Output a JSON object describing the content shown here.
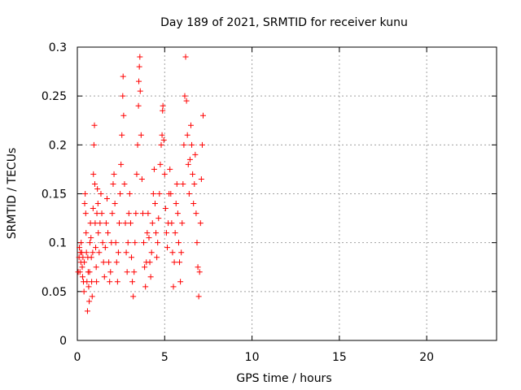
{
  "chart_data": {
    "type": "scatter",
    "title": "Day 189 of 2021, SRMTID for receiver kunu",
    "xlabel": "GPS time / hours",
    "ylabel": "SRMTID / TECUs",
    "xlim": [
      0,
      24
    ],
    "ylim": [
      0,
      0.3
    ],
    "x_ticks": [
      0,
      5,
      10,
      15,
      20
    ],
    "x_tick_labels": [
      "0",
      "5",
      "10",
      "15",
      "20"
    ],
    "y_ticks": [
      0,
      0.05,
      0.1,
      0.15,
      0.2,
      0.25,
      0.3
    ],
    "y_tick_labels": [
      "0",
      "0.05",
      "0.1",
      "0.15",
      "0.2",
      "0.25",
      "0.3"
    ],
    "grid": true,
    "marker": "plus",
    "colors": {
      "series": "#ff0000",
      "grid": "#a0a0a0",
      "axis": "#000000"
    },
    "series": [
      {
        "name": "SRMTID",
        "points": [
          [
            0.05,
            0.07
          ],
          [
            0.1,
            0.085
          ],
          [
            0.12,
            0.095
          ],
          [
            0.15,
            0.07
          ],
          [
            0.18,
            0.09
          ],
          [
            0.2,
            0.08
          ],
          [
            0.22,
            0.1
          ],
          [
            0.25,
            0.09
          ],
          [
            0.28,
            0.075
          ],
          [
            0.3,
            0.065
          ],
          [
            0.32,
            0.085
          ],
          [
            0.35,
            0.06
          ],
          [
            0.38,
            0.05
          ],
          [
            0.4,
            0.08
          ],
          [
            0.42,
            0.14
          ],
          [
            0.45,
            0.15
          ],
          [
            0.48,
            0.13
          ],
          [
            0.5,
            0.11
          ],
          [
            0.52,
            0.09
          ],
          [
            0.55,
            0.06
          ],
          [
            0.58,
            0.03
          ],
          [
            0.6,
            0.085
          ],
          [
            0.62,
            0.07
          ],
          [
            0.65,
            0.055
          ],
          [
            0.68,
            0.04
          ],
          [
            0.7,
            0.07
          ],
          [
            0.72,
            0.1
          ],
          [
            0.75,
            0.12
          ],
          [
            0.78,
            0.105
          ],
          [
            0.8,
            0.085
          ],
          [
            0.82,
            0.06
          ],
          [
            0.85,
            0.045
          ],
          [
            0.88,
            0.09
          ],
          [
            0.9,
            0.135
          ],
          [
            0.92,
            0.17
          ],
          [
            0.95,
            0.2
          ],
          [
            0.98,
            0.22
          ],
          [
            1.0,
            0.16
          ],
          [
            1.02,
            0.12
          ],
          [
            1.05,
            0.095
          ],
          [
            1.08,
            0.075
          ],
          [
            1.1,
            0.06
          ],
          [
            1.12,
            0.13
          ],
          [
            1.15,
            0.155
          ],
          [
            1.18,
            0.14
          ],
          [
            1.2,
            0.11
          ],
          [
            1.25,
            0.09
          ],
          [
            1.3,
            0.12
          ],
          [
            1.35,
            0.15
          ],
          [
            1.4,
            0.13
          ],
          [
            1.45,
            0.1
          ],
          [
            1.5,
            0.08
          ],
          [
            1.55,
            0.065
          ],
          [
            1.6,
            0.095
          ],
          [
            1.65,
            0.12
          ],
          [
            1.7,
            0.145
          ],
          [
            1.75,
            0.11
          ],
          [
            1.8,
            0.08
          ],
          [
            1.85,
            0.06
          ],
          [
            1.9,
            0.07
          ],
          [
            1.95,
            0.1
          ],
          [
            2.0,
            0.13
          ],
          [
            2.05,
            0.16
          ],
          [
            2.1,
            0.17
          ],
          [
            2.15,
            0.14
          ],
          [
            2.2,
            0.1
          ],
          [
            2.25,
            0.08
          ],
          [
            2.3,
            0.06
          ],
          [
            2.35,
            0.09
          ],
          [
            2.4,
            0.12
          ],
          [
            2.45,
            0.15
          ],
          [
            2.5,
            0.18
          ],
          [
            2.55,
            0.21
          ],
          [
            2.6,
            0.25
          ],
          [
            2.62,
            0.27
          ],
          [
            2.65,
            0.23
          ],
          [
            2.7,
            0.16
          ],
          [
            2.75,
            0.12
          ],
          [
            2.8,
            0.09
          ],
          [
            2.85,
            0.07
          ],
          [
            2.9,
            0.1
          ],
          [
            2.95,
            0.13
          ],
          [
            3.0,
            0.15
          ],
          [
            3.05,
            0.12
          ],
          [
            3.1,
            0.085
          ],
          [
            3.15,
            0.06
          ],
          [
            3.2,
            0.045
          ],
          [
            3.25,
            0.07
          ],
          [
            3.3,
            0.1
          ],
          [
            3.35,
            0.13
          ],
          [
            3.4,
            0.17
          ],
          [
            3.45,
            0.2
          ],
          [
            3.5,
            0.24
          ],
          [
            3.52,
            0.265
          ],
          [
            3.55,
            0.28
          ],
          [
            3.58,
            0.29
          ],
          [
            3.6,
            0.255
          ],
          [
            3.65,
            0.21
          ],
          [
            3.7,
            0.165
          ],
          [
            3.75,
            0.13
          ],
          [
            3.8,
            0.1
          ],
          [
            3.85,
            0.075
          ],
          [
            3.9,
            0.055
          ],
          [
            3.95,
            0.08
          ],
          [
            4.0,
            0.11
          ],
          [
            4.05,
            0.13
          ],
          [
            4.1,
            0.105
          ],
          [
            4.15,
            0.08
          ],
          [
            4.2,
            0.065
          ],
          [
            4.25,
            0.09
          ],
          [
            4.3,
            0.12
          ],
          [
            4.35,
            0.15
          ],
          [
            4.4,
            0.175
          ],
          [
            4.45,
            0.14
          ],
          [
            4.5,
            0.11
          ],
          [
            4.55,
            0.085
          ],
          [
            4.6,
            0.1
          ],
          [
            4.65,
            0.125
          ],
          [
            4.7,
            0.15
          ],
          [
            4.75,
            0.18
          ],
          [
            4.8,
            0.2
          ],
          [
            4.85,
            0.21
          ],
          [
            4.88,
            0.235
          ],
          [
            4.9,
            0.24
          ],
          [
            4.95,
            0.205
          ],
          [
            5.0,
            0.17
          ],
          [
            5.05,
            0.135
          ],
          [
            5.1,
            0.11
          ],
          [
            5.15,
            0.095
          ],
          [
            5.2,
            0.12
          ],
          [
            5.25,
            0.15
          ],
          [
            5.3,
            0.175
          ],
          [
            5.35,
            0.15
          ],
          [
            5.4,
            0.12
          ],
          [
            5.45,
            0.09
          ],
          [
            5.5,
            0.055
          ],
          [
            5.55,
            0.08
          ],
          [
            5.6,
            0.11
          ],
          [
            5.65,
            0.14
          ],
          [
            5.7,
            0.16
          ],
          [
            5.75,
            0.13
          ],
          [
            5.8,
            0.1
          ],
          [
            5.85,
            0.08
          ],
          [
            5.9,
            0.06
          ],
          [
            5.95,
            0.09
          ],
          [
            6.0,
            0.12
          ],
          [
            6.05,
            0.16
          ],
          [
            6.1,
            0.2
          ],
          [
            6.15,
            0.25
          ],
          [
            6.2,
            0.29
          ],
          [
            6.25,
            0.245
          ],
          [
            6.3,
            0.21
          ],
          [
            6.35,
            0.18
          ],
          [
            6.4,
            0.15
          ],
          [
            6.45,
            0.185
          ],
          [
            6.5,
            0.22
          ],
          [
            6.55,
            0.2
          ],
          [
            6.6,
            0.17
          ],
          [
            6.65,
            0.14
          ],
          [
            6.7,
            0.16
          ],
          [
            6.75,
            0.19
          ],
          [
            6.8,
            0.13
          ],
          [
            6.85,
            0.1
          ],
          [
            6.9,
            0.075
          ],
          [
            6.95,
            0.045
          ],
          [
            7.0,
            0.07
          ],
          [
            7.05,
            0.12
          ],
          [
            7.1,
            0.165
          ],
          [
            7.15,
            0.2
          ],
          [
            7.2,
            0.23
          ]
        ]
      }
    ]
  }
}
